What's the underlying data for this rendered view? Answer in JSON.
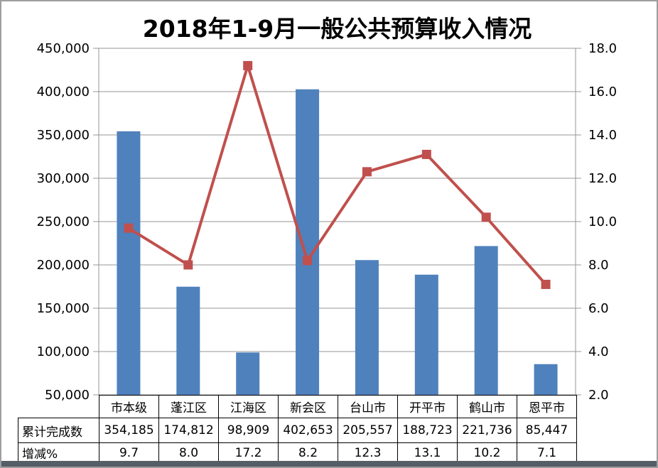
{
  "window": {
    "frame_border_color": "#9e9e9e",
    "bottom_bar_color": "#555d66",
    "background_color": "#ffffff"
  },
  "chart_data": {
    "type": "bar+line combo",
    "title": "2018年1-9月一般公共预算收入情况",
    "categories": [
      "市本级",
      "蓬江区",
      "江海区",
      "新会区",
      "台山市",
      "开平市",
      "鹤山市",
      "恩平市"
    ],
    "series": [
      {
        "name": "累计完成数",
        "type": "bar",
        "axis": "left",
        "color": "#4F81BD",
        "values": [
          354185,
          174812,
          98909,
          402653,
          205557,
          188723,
          221736,
          85447
        ]
      },
      {
        "name": "增减%",
        "type": "line",
        "axis": "right",
        "color": "#C0504D",
        "marker": "square",
        "values": [
          9.7,
          8.0,
          17.2,
          8.2,
          12.3,
          13.1,
          10.2,
          7.1
        ]
      }
    ],
    "left_axis": {
      "min": 50000,
      "max": 450000,
      "step": 50000,
      "tick_labels": [
        "450,000",
        "400,000",
        "350,000",
        "300,000",
        "250,000",
        "200,000",
        "150,000",
        "100,000",
        "50,000"
      ]
    },
    "right_axis": {
      "min": 2.0,
      "max": 18.0,
      "step": 2.0,
      "tick_labels": [
        "18.0",
        "16.0",
        "14.0",
        "12.0",
        "10.0",
        "8.0",
        "6.0",
        "4.0",
        "2.0"
      ]
    },
    "grid": true,
    "grid_color": "#969696",
    "legend": "none"
  },
  "table": {
    "row_labels": [
      "累计完成数",
      "增减%"
    ],
    "header": [
      "市本级",
      "蓬江区",
      "江海区",
      "新会区",
      "台山市",
      "开平市",
      "鹤山市",
      "恩平市"
    ],
    "rows": [
      [
        "354,185",
        "174,812",
        "98,909",
        "402,653",
        "205,557",
        "188,723",
        "221,736",
        "85,447"
      ],
      [
        "9.7",
        "8.0",
        "17.2",
        "8.2",
        "12.3",
        "13.1",
        "10.2",
        "7.1"
      ]
    ]
  }
}
